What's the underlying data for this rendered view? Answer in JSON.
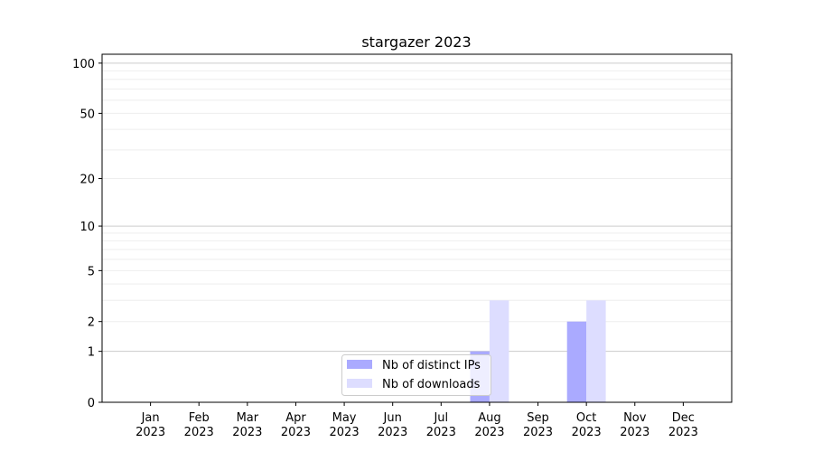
{
  "chart_data": {
    "type": "bar",
    "title": "stargazer 2023",
    "xlabel": "",
    "ylabel": "",
    "categories": [
      "Jan\n2023",
      "Feb\n2023",
      "Mar\n2023",
      "Apr\n2023",
      "May\n2023",
      "Jun\n2023",
      "Jul\n2023",
      "Aug\n2023",
      "Sep\n2023",
      "Oct\n2023",
      "Nov\n2023",
      "Dec\n2023"
    ],
    "y_scale": "log10(1+y)",
    "ylim": [
      0,
      113
    ],
    "yticks": [
      0,
      1,
      2,
      5,
      10,
      20,
      50,
      100
    ],
    "ytick_labels": [
      "0",
      "1",
      "2",
      "5",
      "10",
      "20",
      "50",
      "100"
    ],
    "grid": true,
    "legend_position": "bottom-center",
    "series": [
      {
        "name": "Nb of distinct IPs",
        "color": "#aaaaff",
        "values": [
          0,
          0,
          0,
          0,
          0,
          0,
          0,
          1,
          0,
          2,
          0,
          0
        ]
      },
      {
        "name": "Nb of downloads",
        "color": "#ddddff",
        "values": [
          0,
          0,
          0,
          0,
          0,
          0,
          0,
          3,
          0,
          3,
          0,
          0
        ]
      }
    ]
  }
}
